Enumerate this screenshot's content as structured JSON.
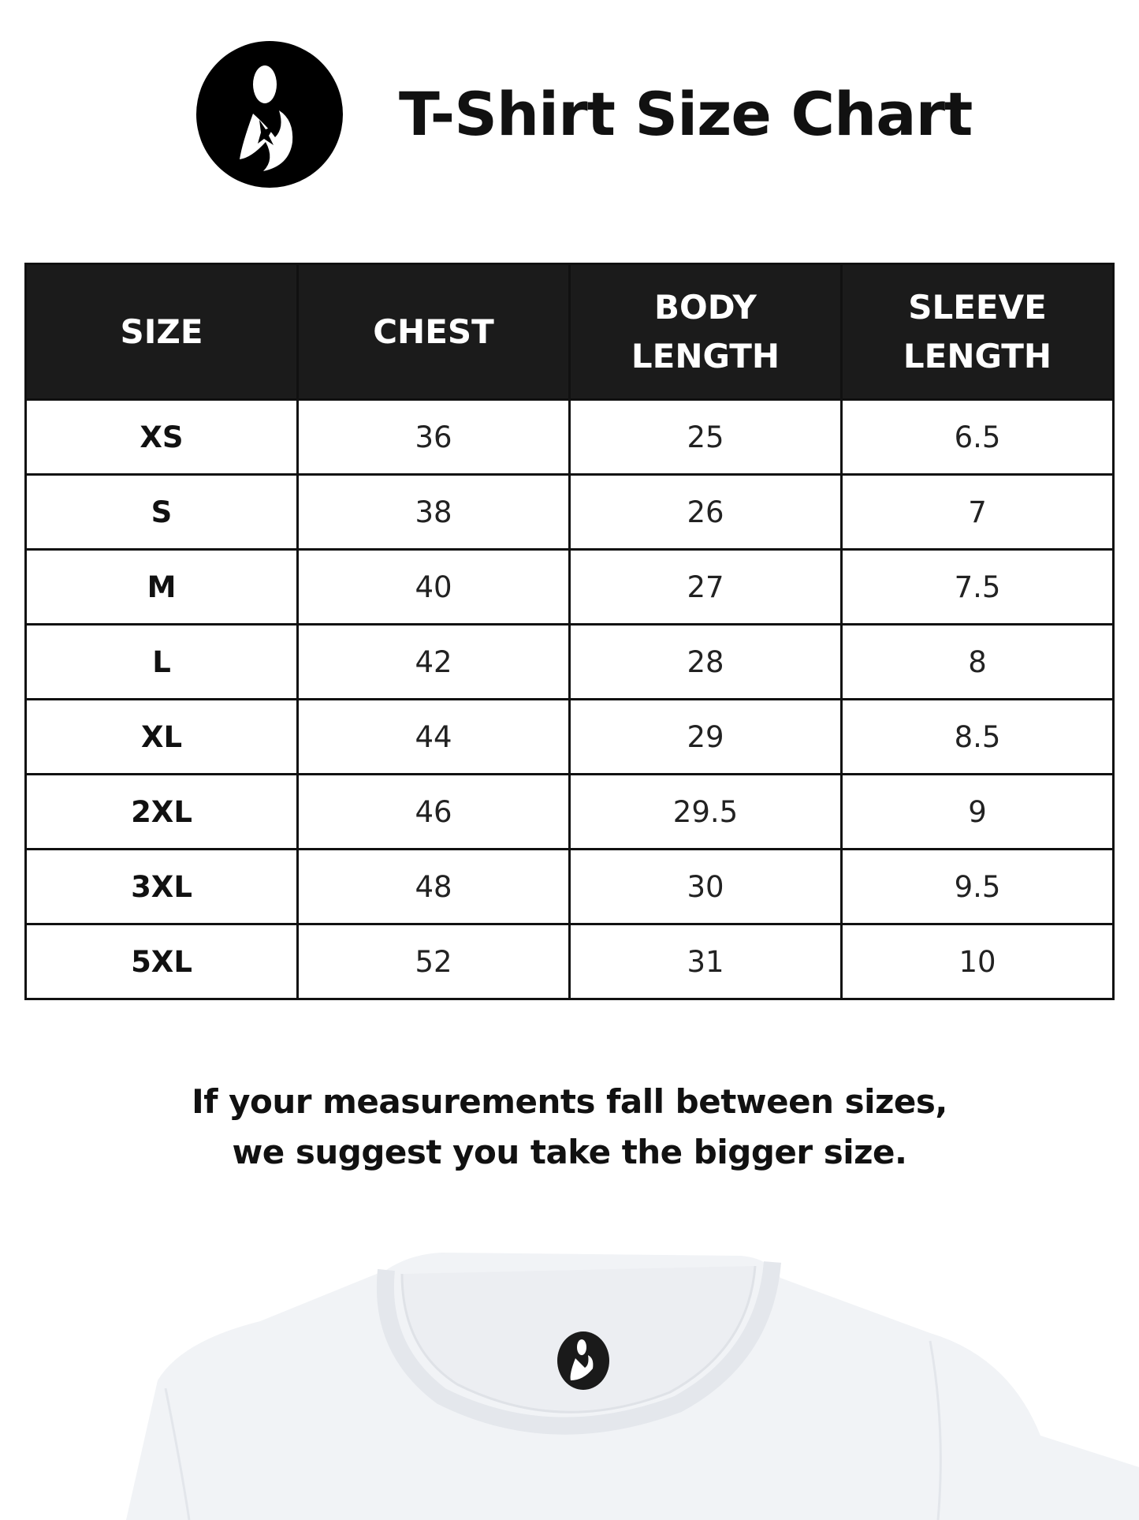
{
  "header": {
    "title": "T-Shirt Size Chart",
    "logo_icon": "mother-child-logo-icon"
  },
  "size_table": {
    "columns": [
      "SIZE",
      "CHEST",
      "BODY\nLENGTH",
      "SLEEVE\nLENGTH"
    ],
    "rows": [
      [
        "XS",
        "36",
        "25",
        "6.5"
      ],
      [
        "S",
        "38",
        "26",
        "7"
      ],
      [
        "M",
        "40",
        "27",
        "7.5"
      ],
      [
        "L",
        "42",
        "28",
        "8"
      ],
      [
        "XL",
        "44",
        "29",
        "8.5"
      ],
      [
        "2XL",
        "46",
        "29.5",
        "9"
      ],
      [
        "3XL",
        "48",
        "30",
        "9.5"
      ],
      [
        "5XL",
        "52",
        "31",
        "10"
      ]
    ],
    "header_bg": "#1b1b1b"
  },
  "note": {
    "line1": "If your measurements fall between sizes,",
    "line2": "we suggest you take the bigger size."
  },
  "product_image": {
    "icon": "white-tshirt-image",
    "color": "#f2f4f7"
  }
}
